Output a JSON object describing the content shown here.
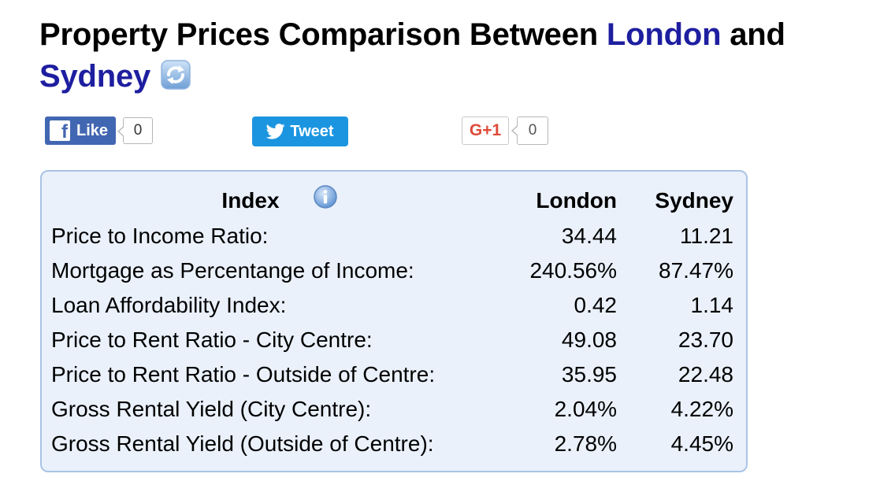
{
  "page": {
    "title_prefix": "Property Prices Comparison Between ",
    "city_a": "London",
    "title_mid": " and ",
    "city_b": "Sydney"
  },
  "social": {
    "facebook": {
      "label": "Like",
      "count": "0"
    },
    "twitter": {
      "label": "Tweet"
    },
    "gplus": {
      "label": "G+1",
      "count": "0"
    }
  },
  "table": {
    "headers": {
      "index": "Index",
      "city_a": "London",
      "city_b": "Sydney"
    },
    "rows": [
      {
        "label": "Price to Income Ratio:",
        "london": "34.44",
        "sydney": "11.21"
      },
      {
        "label": "Mortgage as Percentange of Income:",
        "london": "240.56%",
        "sydney": "87.47%"
      },
      {
        "label": "Loan Affordability Index:",
        "london": "0.42",
        "sydney": "1.14"
      },
      {
        "label": "Price to Rent Ratio - City Centre:",
        "london": "49.08",
        "sydney": "23.70"
      },
      {
        "label": "Price to Rent Ratio - Outside of Centre:",
        "london": "35.95",
        "sydney": "22.48"
      },
      {
        "label": "Gross Rental Yield (City Centre):",
        "london": "2.04%",
        "sydney": "4.22%"
      },
      {
        "label": "Gross Rental Yield (Outside of Centre):",
        "london": "2.78%",
        "sydney": "4.45%"
      }
    ]
  },
  "icons": {
    "refresh": "refresh-icon",
    "info": "info-icon",
    "facebook": "facebook-icon",
    "twitter": "twitter-bird-icon"
  },
  "colors": {
    "city_accent": "#1e1ea0",
    "panel_bg": "#eaf1fb",
    "panel_border": "#a9c4e6",
    "facebook": "#4267b2",
    "twitter": "#1b95e0",
    "gplus": "#dd4b39"
  }
}
